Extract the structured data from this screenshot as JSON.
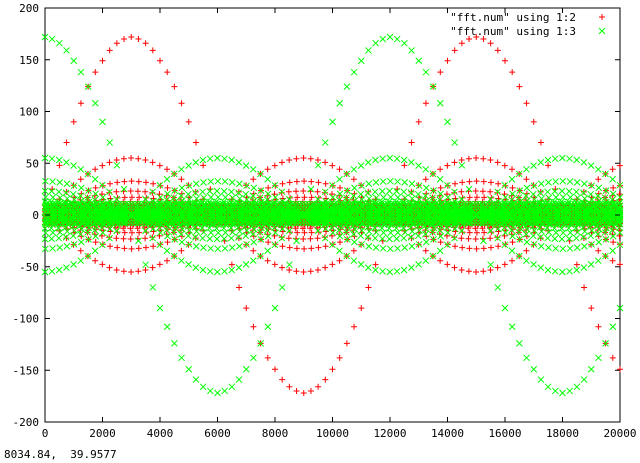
{
  "statusbar": {
    "coords": "8034.84,  39.9577"
  },
  "chart_data": {
    "type": "scatter",
    "title": "",
    "xlabel": "",
    "ylabel": "",
    "xlim": [
      0,
      20000
    ],
    "ylim": [
      -200,
      200
    ],
    "x_ticks": [
      "0",
      "2000",
      "4000",
      "6000",
      "8000",
      "10000",
      "12000",
      "14000",
      "16000",
      "18000",
      "20000"
    ],
    "y_ticks": [
      "200",
      "150",
      "100",
      "50",
      "0",
      "-50",
      "-100",
      "-150",
      "-200"
    ],
    "legend_position": "top-right",
    "grid": false,
    "series": [
      {
        "name": "\"fft.num\" using 1:2",
        "marker": "+",
        "color": "#ff0000",
        "x": [
          0,
          250,
          500,
          750,
          1000,
          1250,
          1500,
          1750,
          2000,
          2250,
          2500,
          2750,
          3000,
          3250,
          3500,
          3750,
          4000,
          4250,
          4500,
          4750,
          5000,
          5250,
          5500,
          5750,
          6000,
          6250,
          6500,
          6750,
          7000,
          7250,
          7500,
          7750,
          8000,
          8250,
          8500,
          8750,
          9000,
          9250,
          9500,
          9750,
          10000,
          10250,
          10500,
          10750,
          11000,
          11250,
          11500,
          11750,
          12000,
          12250,
          12500,
          12750,
          13000,
          13250,
          13500,
          13750,
          14000,
          14250,
          14500,
          14750,
          15000,
          15250,
          15500,
          15750,
          16000,
          16250,
          16500,
          16750,
          17000,
          17250,
          17500,
          17750,
          18000,
          18250,
          18500,
          18750,
          19000,
          19250,
          19500,
          19750,
          20000
        ],
        "envelope": [
          0,
          25,
          48,
          70,
          90,
          108,
          124,
          138,
          149,
          159,
          166,
          170,
          172,
          170,
          166,
          159,
          149,
          138,
          124,
          108,
          90,
          70,
          48,
          25,
          0,
          -25,
          -48,
          -70,
          -90,
          -108,
          -124,
          -138,
          -149,
          -159,
          -166,
          -170,
          -172,
          -170,
          -166,
          -159,
          -149,
          -138,
          -124,
          -108,
          -90,
          -70,
          -48,
          -25,
          0,
          25,
          48,
          70,
          90,
          108,
          124,
          138,
          149,
          159,
          166,
          170,
          172,
          170,
          166,
          159,
          149,
          138,
          124,
          108,
          90,
          70,
          48,
          25,
          0,
          -25,
          -48,
          -70,
          -90,
          -108,
          -124,
          -138,
          -149
        ]
      },
      {
        "name": "\"fft.num\" using 1:3",
        "marker": "x",
        "color": "#00ff00",
        "x": [
          0,
          250,
          500,
          750,
          1000,
          1250,
          1500,
          1750,
          2000,
          2250,
          2500,
          2750,
          3000,
          3250,
          3500,
          3750,
          4000,
          4250,
          4500,
          4750,
          5000,
          5250,
          5500,
          5750,
          6000,
          6250,
          6500,
          6750,
          7000,
          7250,
          7500,
          7750,
          8000,
          8250,
          8500,
          8750,
          9000,
          9250,
          9500,
          9750,
          10000,
          10250,
          10500,
          10750,
          11000,
          11250,
          11500,
          11750,
          12000,
          12250,
          12500,
          12750,
          13000,
          13250,
          13500,
          13750,
          14000,
          14250,
          14500,
          14750,
          15000,
          15250,
          15500,
          15750,
          16000,
          16250,
          16500,
          16750,
          17000,
          17250,
          17500,
          17750,
          18000,
          18250,
          18500,
          18750,
          19000,
          19250,
          19500,
          19750,
          20000
        ],
        "envelope": [
          172,
          170,
          166,
          159,
          149,
          138,
          124,
          108,
          90,
          70,
          48,
          25,
          0,
          -25,
          -48,
          -70,
          -90,
          -108,
          -124,
          -138,
          -149,
          -159,
          -166,
          -170,
          -172,
          -170,
          -166,
          -159,
          -149,
          -138,
          -124,
          -108,
          -90,
          -70,
          -48,
          -25,
          0,
          25,
          48,
          70,
          90,
          108,
          124,
          138,
          149,
          159,
          166,
          170,
          172,
          170,
          166,
          159,
          149,
          138,
          124,
          108,
          90,
          70,
          48,
          25,
          0,
          -25,
          -48,
          -70,
          -90,
          -108,
          -124,
          -138,
          -149,
          -159,
          -166,
          -170,
          -172,
          -170,
          -166,
          -159,
          -149,
          -138,
          -124,
          -108,
          -90
        ]
      }
    ]
  }
}
